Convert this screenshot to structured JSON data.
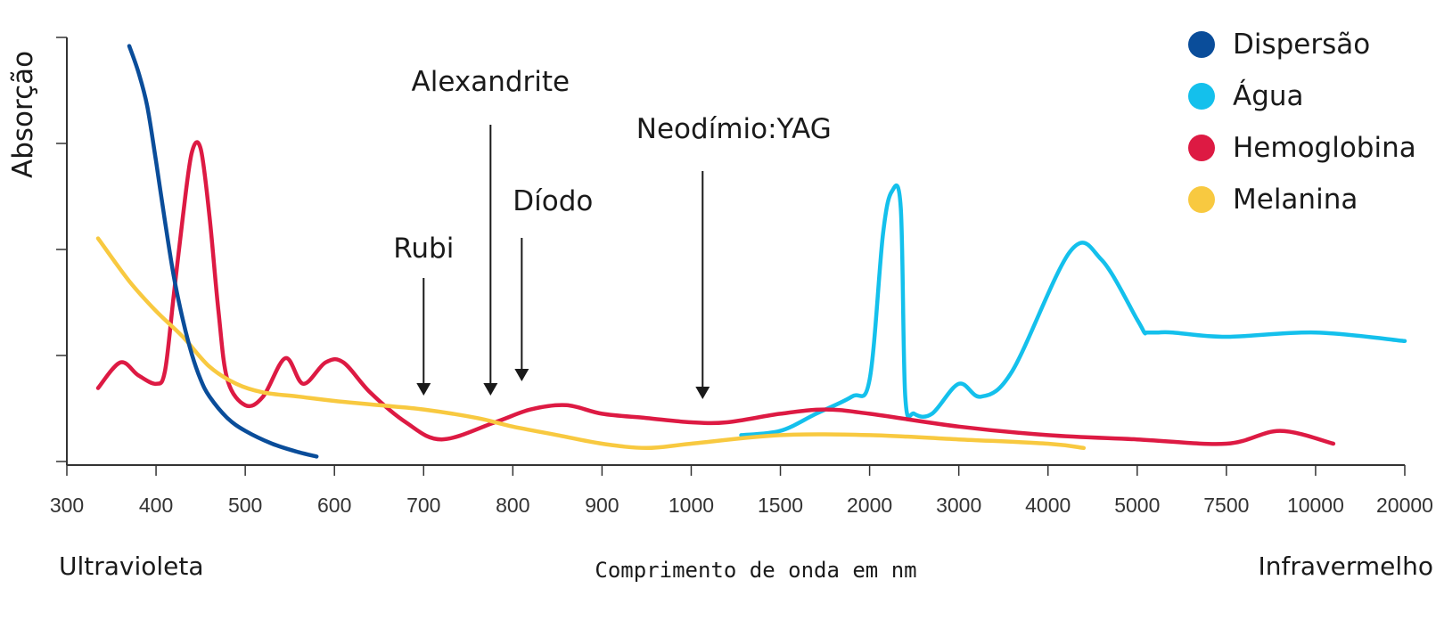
{
  "chart_data": {
    "type": "line",
    "ylabel": "Absorção",
    "xlabel": "Comprimento de onda em nm",
    "x_left_label": "Ultravioleta",
    "x_right_label": "Infravermelho",
    "x_ticks": [
      "300",
      "400",
      "500",
      "600",
      "700",
      "800",
      "900",
      "1000",
      "1500",
      "2000",
      "3000",
      "4000",
      "5000",
      "7500",
      "10000",
      "20000"
    ],
    "y_ticks": 5,
    "y_range": [
      0,
      1
    ],
    "x_scale": "piecewise (ticks equally spaced)",
    "legend_position": "top-right",
    "series": [
      {
        "name": "Dispersão",
        "color": "#0a4d9a",
        "x": [
          370,
          380,
          390,
          400,
          410,
          420,
          430,
          440,
          450,
          460,
          480,
          500,
          530,
          560,
          580
        ],
        "y": [
          0.98,
          0.92,
          0.84,
          0.71,
          0.57,
          0.44,
          0.34,
          0.26,
          0.2,
          0.16,
          0.11,
          0.08,
          0.05,
          0.03,
          0.02
        ]
      },
      {
        "name": "Água",
        "color": "#14c0ec",
        "x": [
          1280,
          1500,
          1700,
          1900,
          2000,
          2150,
          2250,
          2350,
          2400,
          2500,
          2700,
          3000,
          3250,
          3600,
          4250,
          4600,
          5000,
          5200,
          5250,
          5400,
          5600,
          6000,
          7500,
          10000,
          20000
        ],
        "y": [
          0.07,
          0.08,
          0.12,
          0.16,
          0.2,
          0.54,
          0.64,
          0.6,
          0.16,
          0.12,
          0.12,
          0.19,
          0.16,
          0.22,
          0.5,
          0.48,
          0.34,
          0.31,
          0.31,
          0.31,
          0.31,
          0.31,
          0.3,
          0.31,
          0.29
        ]
      },
      {
        "name": "Hemoglobina",
        "color": "#dd1a43",
        "x": [
          335,
          360,
          380,
          400,
          410,
          420,
          430,
          440,
          450,
          460,
          470,
          480,
          500,
          520,
          545,
          565,
          590,
          610,
          640,
          680,
          720,
          780,
          820,
          860,
          900,
          950,
          1000,
          1200,
          1500,
          1750,
          2000,
          3000,
          4000,
          5000,
          7500,
          9000,
          12000
        ],
        "y": [
          0.18,
          0.24,
          0.21,
          0.19,
          0.22,
          0.4,
          0.58,
          0.73,
          0.74,
          0.58,
          0.36,
          0.2,
          0.14,
          0.16,
          0.25,
          0.19,
          0.24,
          0.24,
          0.17,
          0.1,
          0.06,
          0.1,
          0.13,
          0.14,
          0.12,
          0.11,
          0.1,
          0.1,
          0.12,
          0.13,
          0.12,
          0.09,
          0.07,
          0.06,
          0.05,
          0.08,
          0.05
        ]
      },
      {
        "name": "Melanina",
        "color": "#f8c940",
        "x": [
          335,
          370,
          400,
          430,
          460,
          490,
          520,
          560,
          600,
          650,
          700,
          760,
          800,
          850,
          900,
          950,
          1000,
          1500,
          2000,
          3000,
          4000,
          4400
        ],
        "y": [
          0.53,
          0.43,
          0.36,
          0.3,
          0.23,
          0.19,
          0.17,
          0.16,
          0.15,
          0.14,
          0.13,
          0.11,
          0.09,
          0.07,
          0.05,
          0.04,
          0.05,
          0.07,
          0.07,
          0.06,
          0.05,
          0.04
        ]
      }
    ],
    "annotations": [
      {
        "label": "Rubi",
        "x": 700
      },
      {
        "label": "Alexandrite",
        "x": 775
      },
      {
        "label": "Díodo",
        "x": 810
      },
      {
        "label": "Neodímio:YAG",
        "x": 1064
      }
    ]
  }
}
